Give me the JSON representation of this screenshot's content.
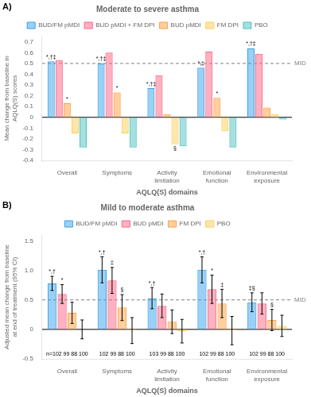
{
  "chart_data": [
    {
      "type": "bar",
      "title": "Moderate to severe asthma",
      "x_label": "AQLQ(S) domains",
      "y_label": "Mean change from baseline in AQLQ(S) scores",
      "categories": [
        "Overall",
        "Symptoms",
        "Activity\nlimitation",
        "Emotional\nfunction",
        "Environmental\nexposure"
      ],
      "series": [
        {
          "name": "BUD/FM pMDI",
          "values": [
            0.52,
            0.5,
            0.27,
            0.46,
            0.64
          ]
        },
        {
          "name": "BUD pMDI + FM DPI",
          "values": [
            0.53,
            0.6,
            0.39,
            0.61,
            0.59
          ]
        },
        {
          "name": "BUD pMDI",
          "values": [
            0.13,
            0.23,
            0.03,
            0.18,
            0.09
          ]
        },
        {
          "name": "FM DPI",
          "values": [
            -0.15,
            -0.15,
            -0.25,
            -0.13,
            0.03
          ]
        },
        {
          "name": "PBO",
          "values": [
            -0.28,
            -0.28,
            -0.27,
            -0.28,
            -0.02
          ]
        }
      ],
      "ylim": [
        -0.4,
        0.75
      ],
      "yticks": [
        -0.4,
        -0.3,
        -0.2,
        -0.1,
        0,
        0.1,
        0.2,
        0.3,
        0.4,
        0.5,
        0.6,
        0.7
      ],
      "grid": false,
      "legend": "top",
      "annotations": [
        {
          "text": "A)"
        },
        {
          "text": "MID",
          "y": 0.5,
          "line_style": "dashed",
          "color": "gray"
        },
        {
          "text": "*,†‡",
          "series": "BUD/FM pMDI",
          "category": "Overall"
        },
        {
          "text": "*",
          "series": "BUD pMDI",
          "category": "Overall"
        },
        {
          "text": "*,†‡",
          "series": "BUD/FM pMDI",
          "category": "Symptoms"
        },
        {
          "text": "*",
          "series": "BUD pMDI",
          "category": "Symptoms"
        },
        {
          "text": "*,†‡",
          "series": "BUD/FM pMDI",
          "category": "Activity\nlimitation"
        },
        {
          "text": "§",
          "series": "FM DPI",
          "category": "Activity\nlimitation"
        },
        {
          "text": "*,‡",
          "series": "BUD/FM pMDI",
          "category": "Emotional\nfunction"
        },
        {
          "text": "*",
          "series": "BUD pMDI",
          "category": "Emotional\nfunction"
        },
        {
          "text": "*,†‡",
          "series": "BUD/FM pMDI",
          "category": "Environmental\nexposure"
        }
      ]
    },
    {
      "type": "bar",
      "title": "Mild to moderate asthma",
      "x_label": "AQLQ(S) domains",
      "y_label": "Adjusted mean change from baseline at end of treatment (95% CI)",
      "categories": [
        "Overall",
        "Symptoms",
        "Activity\nlimitation",
        "Emotional\nfunction",
        "Environmental\nexposure"
      ],
      "series": [
        {
          "name": "BUD/FM pMDI",
          "values": [
            0.78,
            1.01,
            0.53,
            1.01,
            0.46
          ],
          "errors": [
            0.12,
            0.22,
            0.18,
            0.22,
            0.16
          ]
        },
        {
          "name": "BUD pMDI",
          "values": [
            0.6,
            0.83,
            0.4,
            0.68,
            0.44
          ],
          "errors": [
            0.16,
            0.22,
            0.2,
            0.24,
            0.18
          ]
        },
        {
          "name": "FM DPI",
          "values": [
            0.28,
            0.37,
            0.13,
            0.44,
            0.16
          ],
          "errors": [
            0.18,
            0.22,
            0.2,
            0.24,
            0.18
          ]
        },
        {
          "name": "PBO",
          "values": [
            0.0,
            -0.02,
            -0.03,
            -0.02,
            0.06
          ],
          "errors": [
            0.16,
            0.22,
            0.2,
            0.24,
            0.18
          ]
        }
      ],
      "ylim": [
        -0.5,
        1.6
      ],
      "yticks": [
        -0.5,
        {
          "value": -0.25,
          "label": ""
        },
        0,
        {
          "value": 0.25,
          "label": ""
        },
        0.5,
        {
          "value": 0.75,
          "label": ""
        },
        {
          "value": 1.0,
          "label": "1.0"
        },
        {
          "value": 1.25,
          "label": ""
        },
        1.5
      ],
      "grid": false,
      "legend": "top",
      "annotations": [
        {
          "text": "B)"
        },
        {
          "text": "MID",
          "y": 0.5,
          "line_style": "dashed",
          "color": "gray"
        },
        {
          "text": "*,†",
          "series": "BUD/FM pMDI",
          "category": "Overall"
        },
        {
          "text": "*",
          "series": "BUD pMDI",
          "category": "Overall"
        },
        {
          "text": "*,†",
          "series": "BUD/FM pMDI",
          "category": "Symptoms"
        },
        {
          "text": "‡",
          "series": "BUD pMDI",
          "category": "Symptoms"
        },
        {
          "text": "§",
          "series": "FM DPI",
          "category": "Symptoms"
        },
        {
          "text": "*,†",
          "series": "BUD/FM pMDI",
          "category": "Activity\nlimitation"
        },
        {
          "text": "*,†",
          "series": "BUD/FM pMDI",
          "category": "Emotional\nfunction"
        },
        {
          "text": "*",
          "series": "BUD pMDI",
          "category": "Emotional\nfunction"
        },
        {
          "text": "‡",
          "series": "FM DPI",
          "category": "Emotional\nfunction"
        },
        {
          "text": "‡§",
          "series": "BUD/FM pMDI",
          "category": "Environmental\nexposure"
        },
        {
          "text": "§",
          "series": "FM DPI",
          "category": "Environmental\nexposure"
        },
        {
          "text": "n=102 99 88 100",
          "category": "Overall"
        },
        {
          "text": "102 99 88 100",
          "category": "Symptoms"
        },
        {
          "text": "103 99 88 100",
          "category": "Activity\nlimitation"
        },
        {
          "text": "102 99 88 100",
          "category": "Emotional\nfunction"
        },
        {
          "text": "102 99 88 100",
          "category": "Environmental\nexposure"
        }
      ]
    }
  ]
}
